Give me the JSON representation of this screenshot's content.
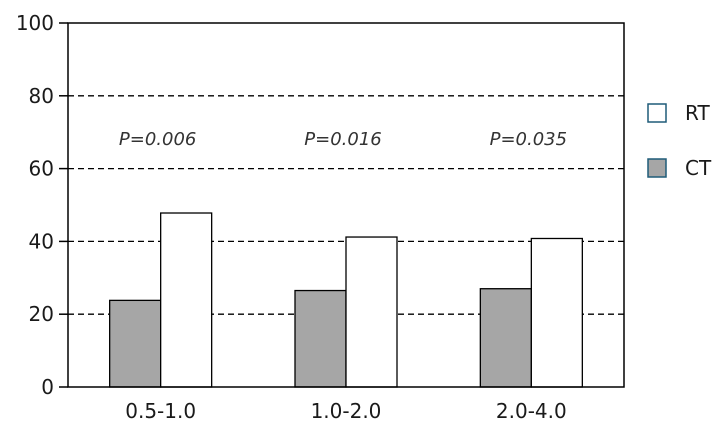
{
  "chart_data": {
    "type": "bar",
    "title": "",
    "xlabel": "",
    "ylabel": "",
    "categories": [
      "0.5-1.0",
      "1.0-2.0",
      "2.0-4.0"
    ],
    "series": [
      {
        "name": "CT",
        "values": [
          23.8,
          26.5,
          27.0
        ],
        "color": "#a6a6a6"
      },
      {
        "name": "RT",
        "values": [
          47.8,
          41.2,
          40.8
        ],
        "color": "#ffffff"
      }
    ],
    "ylim": [
      0,
      100
    ],
    "yticks": [
      "0",
      "20",
      "40",
      "60",
      "80",
      "100"
    ],
    "grid": "dashed horizontal at 20, 40, 60, 80",
    "legend_position": "right",
    "legend_entries": [
      "RT",
      "CT"
    ],
    "legend_swatch_border": "#1f5b78",
    "annotations": [
      "P=0.006",
      "P=0.016",
      "P=0.035"
    ]
  }
}
